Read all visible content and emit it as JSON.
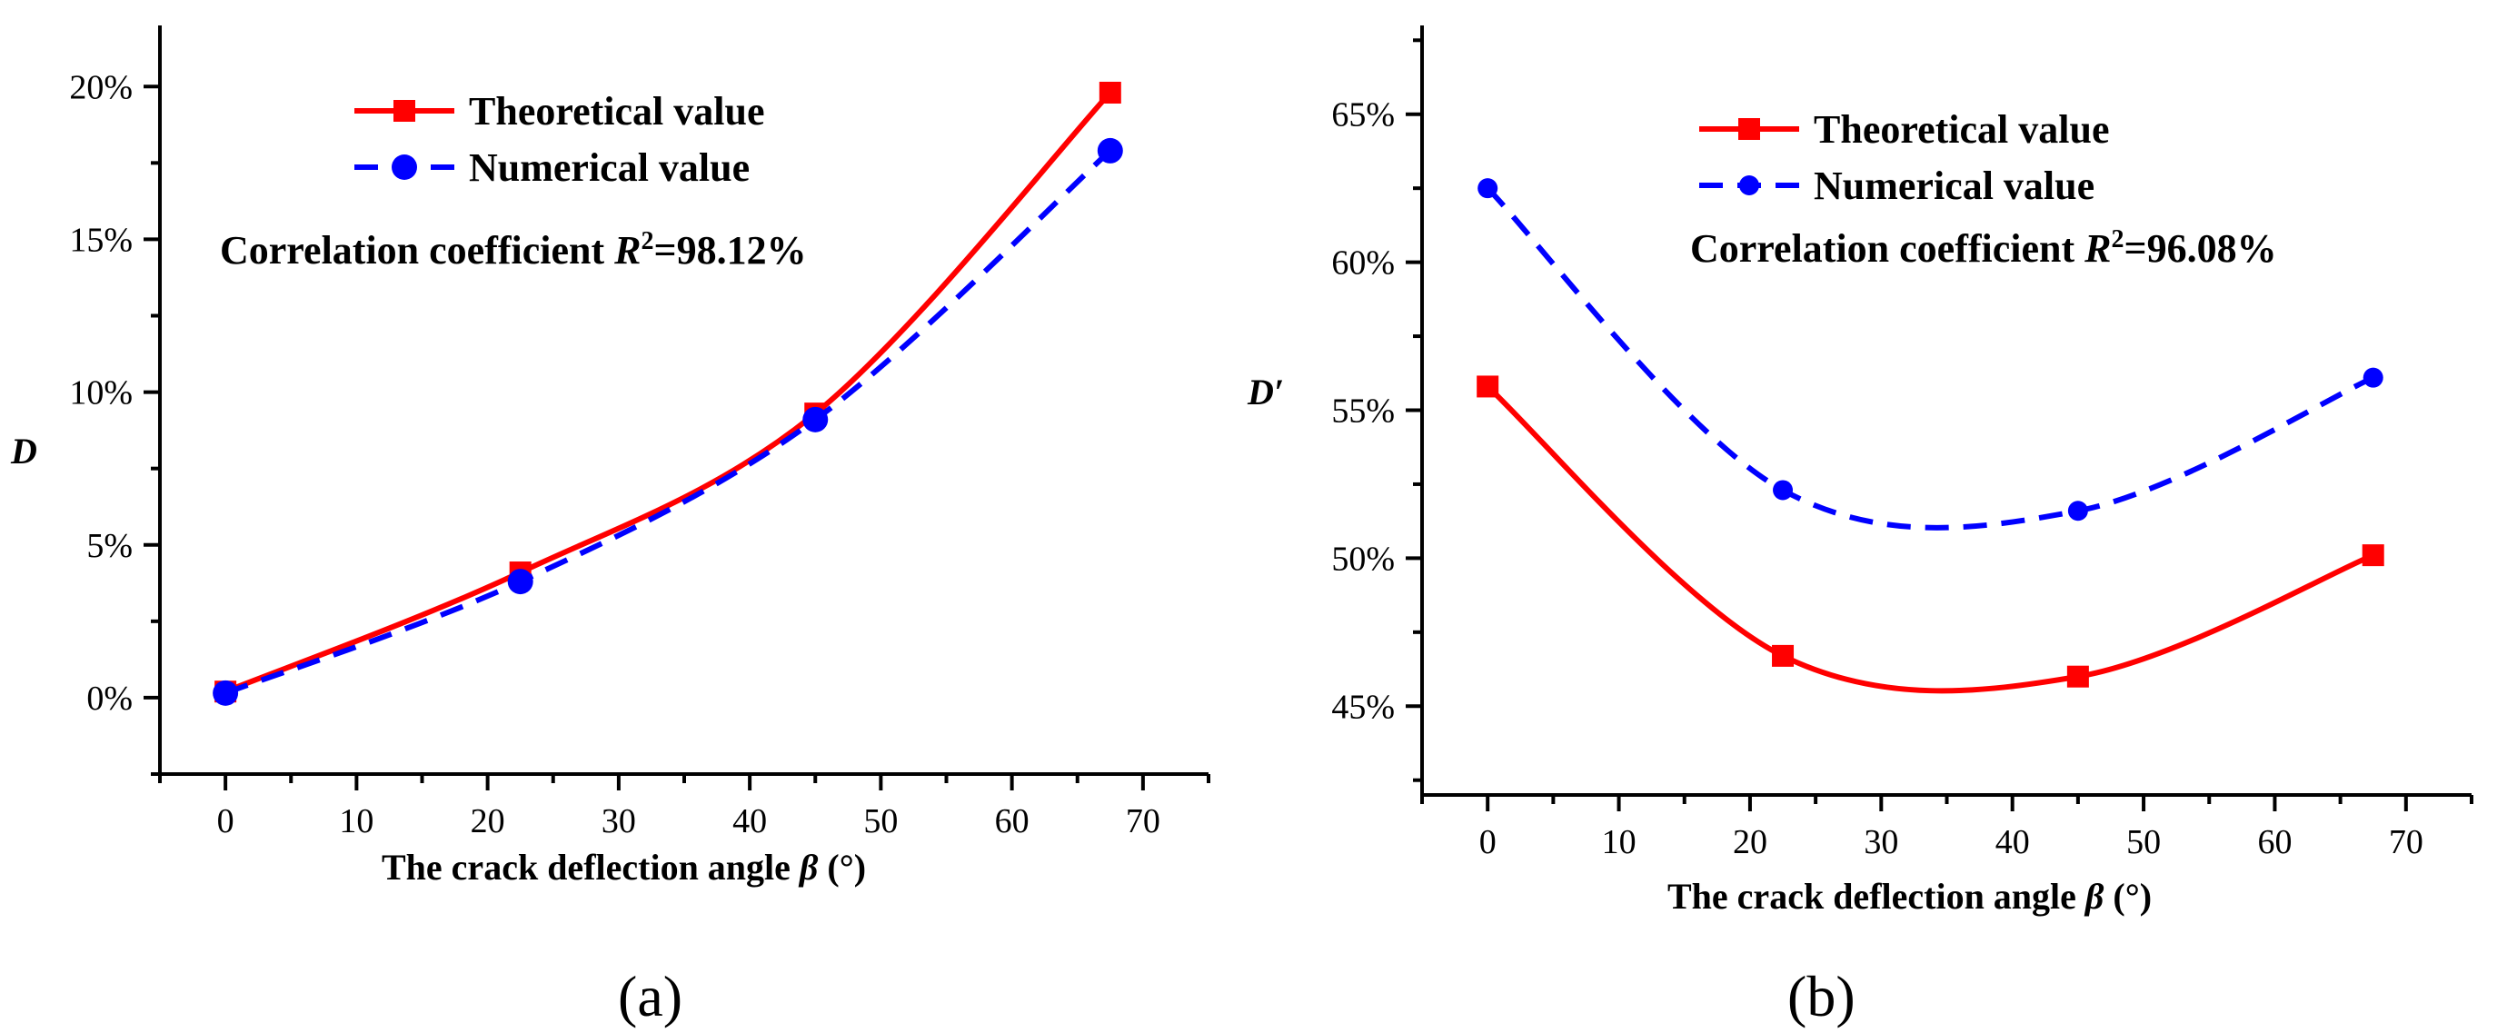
{
  "chart_data": [
    {
      "id": "a",
      "type": "line",
      "panel_label": "(a)",
      "xlabel": "The crack deflection angle ",
      "xlabel_symbol": "β",
      "xlabel_unit": " (°)",
      "ylabel": "D",
      "xlim": [
        -5,
        75
      ],
      "ylim": [
        -2.5,
        22
      ],
      "x_ticks": [
        0,
        10,
        20,
        30,
        40,
        50,
        60,
        70
      ],
      "y_ticks": [
        0,
        5,
        10,
        15,
        20
      ],
      "y_tick_labels": [
        "0%",
        "5%",
        "10%",
        "15%",
        "20%"
      ],
      "x": [
        0,
        22.5,
        45,
        67.5
      ],
      "series": [
        {
          "name": "Theoretical value",
          "values": [
            0.2,
            4.1,
            9.3,
            19.8
          ],
          "color": "#ff0000",
          "dash": "solid",
          "marker": "square"
        },
        {
          "name": "Numerical value",
          "values": [
            0.15,
            3.8,
            9.1,
            17.9
          ],
          "color": "#0000ff",
          "dash": "dashed",
          "marker": "circle"
        }
      ],
      "annotation": {
        "prefix": "Correlation coefficient ",
        "symbol": "R",
        "sup": "2",
        "suffix": "=98.12%"
      },
      "legend_position": "top-center"
    },
    {
      "id": "b",
      "type": "line",
      "panel_label": "(b)",
      "xlabel": "The crack deflection angle ",
      "xlabel_symbol": "β",
      "xlabel_unit": " (°)",
      "ylabel": "D′",
      "xlim": [
        -5,
        75
      ],
      "ylim": [
        42,
        68
      ],
      "x_ticks": [
        0,
        10,
        20,
        30,
        40,
        50,
        60,
        70
      ],
      "y_ticks": [
        45,
        50,
        55,
        60,
        65
      ],
      "y_tick_labels": [
        "45%",
        "50%",
        "55%",
        "60%",
        "65%"
      ],
      "x": [
        0,
        22.5,
        45,
        67.5
      ],
      "series": [
        {
          "name": "Theoretical value",
          "values": [
            55.8,
            46.7,
            46.0,
            50.1
          ],
          "color": "#ff0000",
          "dash": "solid",
          "marker": "square"
        },
        {
          "name": "Numerical value",
          "values": [
            62.5,
            52.3,
            51.6,
            56.1
          ],
          "color": "#0000ff",
          "dash": "dashed",
          "marker": "circle"
        }
      ],
      "annotation": {
        "prefix": "Correlation coefficient ",
        "symbol": "R",
        "sup": "2",
        "suffix": "=96.08%"
      },
      "legend_position": "top-center"
    }
  ]
}
